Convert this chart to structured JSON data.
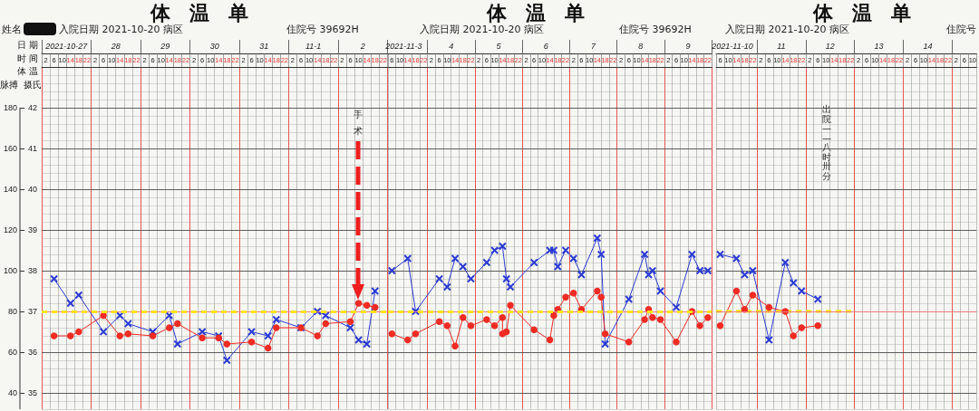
{
  "chart_data": [
    {
      "type": "line",
      "title": "体温单",
      "subtitle": "入院日期 2021-10-20 病区",
      "xlabel": "时 间",
      "x2label": "日 期",
      "ylabel": "脉搏",
      "y2label": "摄氏",
      "annotations": [
        "姓名",
        "住院号 39692H",
        "体 温",
        "手术"
      ],
      "xlim": [
        "2021-10-27T00:00",
        "2021-11-03T00:00"
      ],
      "xticks": [
        {
          "value": "2021-10-27T00:00",
          "label": null
        },
        {
          "value": "2021-10-27T02:00",
          "label": "2"
        },
        {
          "value": "2021-10-27T04:00",
          "label": null
        },
        {
          "value": "2021-10-27T06:00",
          "label": "6"
        },
        {
          "value": "2021-10-27T08:00",
          "label": null
        },
        {
          "value": "2021-10-27T10:00",
          "label": "10"
        },
        {
          "value": "2021-10-27T12:00",
          "label": null
        },
        {
          "value": "2021-10-27T14:00",
          "label": "14"
        },
        {
          "value": "2021-10-27T16:00",
          "label": null
        },
        {
          "value": "2021-10-27T18:00",
          "label": "18"
        },
        {
          "value": "2021-10-27T20:00",
          "label": null
        },
        {
          "value": "2021-10-27T22:00",
          "label": "22"
        },
        {
          "value": "2021-10-28T00:00",
          "label": null
        },
        {
          "value": "2021-10-28T02:00",
          "label": "2"
        },
        {
          "value": "2021-10-28T04:00",
          "label": null
        },
        {
          "value": "2021-10-28T06:00",
          "label": "6"
        },
        {
          "value": "2021-10-28T08:00",
          "label": null
        },
        {
          "value": "2021-10-28T10:00",
          "label": "10"
        },
        {
          "value": "2021-10-28T12:00",
          "label": null
        },
        {
          "value": "2021-10-28T14:00",
          "label": "14"
        },
        {
          "value": "2021-10-28T16:00",
          "label": null
        },
        {
          "value": "2021-10-28T18:00",
          "label": "18"
        },
        {
          "value": "2021-10-28T20:00",
          "label": null
        },
        {
          "value": "2021-10-28T22:00",
          "label": "22"
        },
        {
          "value": "2021-10-29T00:00",
          "label": null
        },
        {
          "value": "2021-10-29T02:00",
          "label": "2"
        },
        {
          "value": "2021-10-29T04:00",
          "label": null
        },
        {
          "value": "2021-10-29T06:00",
          "label": "6"
        },
        {
          "value": "2021-10-29T08:00",
          "label": null
        },
        {
          "value": "2021-10-29T10:00",
          "label": "10"
        },
        {
          "value": "2021-10-29T12:00",
          "label": null
        },
        {
          "value": "2021-10-29T14:00",
          "label": "14"
        },
        {
          "value": "2021-10-29T16:00",
          "label": null
        },
        {
          "value": "2021-10-29T18:00",
          "label": "18"
        },
        {
          "value": "2021-10-29T20:00",
          "label": null
        },
        {
          "value": "2021-10-29T22:00",
          "label": "22"
        },
        {
          "value": "2021-10-30T00:00",
          "label": null
        },
        {
          "value": "2021-10-30T02:00",
          "label": "2"
        },
        {
          "value": "2021-10-30T04:00",
          "label": null
        },
        {
          "value": "2021-10-30T06:00",
          "label": "6"
        },
        {
          "value": "2021-10-30T08:00",
          "label": null
        },
        {
          "value": "2021-10-30T10:00",
          "label": "10"
        },
        {
          "value": "2021-10-30T12:00",
          "label": null
        },
        {
          "value": "2021-10-30T14:00",
          "label": "14"
        },
        {
          "value": "2021-10-30T16:00",
          "label": null
        },
        {
          "value": "2021-10-30T18:00",
          "label": "18"
        },
        {
          "value": "2021-10-30T20:00",
          "label": null
        },
        {
          "value": "2021-10-30T22:00",
          "label": "22"
        },
        {
          "value": "2021-10-31T00:00",
          "label": null
        },
        {
          "value": "2021-10-31T02:00",
          "label": "2"
        },
        {
          "value": "2021-10-31T04:00",
          "label": null
        },
        {
          "value": "2021-10-31T06:00",
          "label": "6"
        },
        {
          "value": "2021-10-31T08:00",
          "label": null
        },
        {
          "value": "2021-10-31T10:00",
          "label": "10"
        },
        {
          "value": "2021-10-31T12:00",
          "label": null
        },
        {
          "value": "2021-10-31T14:00",
          "label": "14"
        },
        {
          "value": "2021-10-31T16:00",
          "label": null
        },
        {
          "value": "2021-10-31T18:00",
          "label": "18"
        },
        {
          "value": "2021-10-31T20:00",
          "label": null
        },
        {
          "value": "2021-10-31T22:00",
          "label": "22"
        },
        {
          "value": "2021-11-01T00:00",
          "label": null
        },
        {
          "value": "2021-11-01T02:00",
          "label": "2"
        },
        {
          "value": "2021-11-01T04:00",
          "label": null
        },
        {
          "value": "2021-11-01T06:00",
          "label": "6"
        },
        {
          "value": "2021-11-01T08:00",
          "label": null
        },
        {
          "value": "2021-11-01T10:00",
          "label": "10"
        },
        {
          "value": "2021-11-01T12:00",
          "label": null
        },
        {
          "value": "2021-11-01T14:00",
          "label": "14"
        },
        {
          "value": "2021-11-01T16:00",
          "label": null
        },
        {
          "value": "2021-11-01T18:00",
          "label": "18"
        },
        {
          "value": "2021-11-01T20:00",
          "label": null
        },
        {
          "value": "2021-11-01T22:00",
          "label": "22"
        },
        {
          "value": "2021-11-02T00:00",
          "label": null
        },
        {
          "value": "2021-11-02T02:00",
          "label": "2"
        },
        {
          "value": "2021-11-02T04:00",
          "label": null
        },
        {
          "value": "2021-11-02T06:00",
          "label": "6"
        },
        {
          "value": "2021-11-02T08:00",
          "label": null
        },
        {
          "value": "2021-11-02T10:00",
          "label": "10"
        },
        {
          "value": "2021-11-02T12:00",
          "label": null
        },
        {
          "value": "2021-11-02T14:00",
          "label": "14"
        },
        {
          "value": "2021-11-02T16:00",
          "label": null
        },
        {
          "value": "2021-11-02T18:00",
          "label": "18"
        },
        {
          "value": "2021-11-02T20:00",
          "label": null
        },
        {
          "value": "2021-11-02T22:00",
          "label": "22"
        },
        {
          "value": "2021-11-03T00:00",
          "label": null
        }
      ],
      "x2lim": [
        "2021-10-27T00:00",
        "2021-11-03T00:00"
      ],
      "x2ticks": [
        {
          "value": "2021-10-27T00:00",
          "label": null
        },
        {
          "value": "2021-10-27T12:00",
          "label": "2021-10-27"
        },
        {
          "value": "2021-10-28T00:00",
          "label": null
        },
        {
          "value": "2021-10-28T12:00",
          "label": "28"
        },
        {
          "value": "2021-10-29T00:00",
          "label": null
        },
        {
          "value": "2021-10-29T12:00",
          "label": "29"
        },
        {
          "value": "2021-10-30T00:00",
          "label": null
        },
        {
          "value": "2021-10-30T12:00",
          "label": "30"
        },
        {
          "value": "2021-10-31T00:00",
          "label": null
        },
        {
          "value": "2021-10-31T12:00",
          "label": "31"
        },
        {
          "value": "2021-11-01T00:00",
          "label": null
        },
        {
          "value": "2021-11-01T12:00",
          "label": "11-1"
        },
        {
          "value": "2021-11-02T00:00",
          "label": null
        },
        {
          "value": "2021-11-02T12:00",
          "label": "2"
        },
        {
          "value": "2021-11-03T00:00",
          "label": null
        }
      ],
      "ylim": [
        32,
        200
      ],
      "yticks": [
        40,
        60,
        80,
        100,
        120,
        140,
        160,
        180
      ],
      "y2lim": [
        34.6,
        43
      ],
      "y2ticks": [
        35,
        36,
        37,
        38,
        39,
        40,
        41,
        42
      ],
      "grid": true,
      "ref_lines": [
        {
          "axis": "y2",
          "value": 37,
          "color": "#f08080"
        },
        {
          "axis": "y2",
          "value": 37,
          "color": "#ffe600",
          "line_style": "dashed"
        }
      ],
      "series": [
        {
          "color": "#2b3bd4",
          "marker": "cross",
          "axis": "y2",
          "x": [
            "2021-10-27T06:00",
            "2021-10-27T14:00",
            "2021-10-27T18:00",
            "2021-10-28T06:00",
            "2021-10-28T14:00",
            "2021-10-28T18:00",
            "2021-10-29T06:00",
            "2021-10-29T14:00",
            "2021-10-29T18:00",
            "2021-10-30T06:00",
            "2021-10-30T14:00",
            "2021-10-30T18:00",
            "2021-10-31T06:00",
            "2021-10-31T14:00",
            "2021-10-31T18:00",
            "2021-11-01T06:00",
            "2021-11-01T14:00",
            "2021-11-01T18:00",
            "2021-11-02T06:00",
            "2021-11-02T10:00",
            "2021-11-02T14:00",
            "2021-11-02T18:00"
          ],
          "values": [
            37.8,
            37.2,
            37.4,
            36.5,
            36.9,
            36.7,
            36.5,
            36.9,
            36.2,
            36.5,
            36.4,
            35.8,
            36.5,
            36.4,
            36.8,
            36.6,
            37.0,
            36.9,
            36.6,
            36.3,
            36.2,
            37.5
          ]
        },
        {
          "color": "#ef2b23",
          "marker": "circle",
          "axis": "y",
          "x": [
            "2021-10-27T06:00",
            "2021-10-27T14:00",
            "2021-10-27T18:00",
            "2021-10-28T06:00",
            "2021-10-28T14:00",
            "2021-10-28T18:00",
            "2021-10-29T06:00",
            "2021-10-29T14:00",
            "2021-10-29T18:00",
            "2021-10-30T06:00",
            "2021-10-30T14:00",
            "2021-10-30T18:00",
            "2021-10-31T06:00",
            "2021-10-31T14:00",
            "2021-10-31T18:00",
            "2021-11-01T06:00",
            "2021-11-01T14:00",
            "2021-11-01T18:00",
            "2021-11-02T06:00",
            "2021-11-02T10:00",
            "2021-11-02T14:00",
            "2021-11-02T18:00"
          ],
          "values": [
            68,
            68,
            70,
            78,
            68,
            69,
            68,
            72,
            74,
            67,
            67,
            64,
            65,
            62,
            72,
            72,
            68,
            74,
            75,
            84,
            83,
            82
          ]
        }
      ]
    },
    {
      "type": "line",
      "title": "体温单",
      "subtitle": "入院日期 2021-10-20 病区",
      "annotations": [
        "住院号 39692H"
      ],
      "xlim": [
        "2021-11-03T04:00",
        "2021-11-10T00:00"
      ],
      "xticks": [
        {
          "value": "2021-11-03T04:00",
          "label": null
        },
        {
          "value": "2021-11-03T06:00",
          "label": "6"
        },
        {
          "value": "2021-11-03T08:00",
          "label": null
        },
        {
          "value": "2021-11-03T10:00",
          "label": "10"
        },
        {
          "value": "2021-11-03T12:00",
          "label": null
        },
        {
          "value": "2021-11-03T14:00",
          "label": "14"
        },
        {
          "value": "2021-11-03T16:00",
          "label": null
        },
        {
          "value": "2021-11-03T18:00",
          "label": "18"
        },
        {
          "value": "2021-11-03T20:00",
          "label": null
        },
        {
          "value": "2021-11-03T22:00",
          "label": "22"
        },
        {
          "value": "2021-11-04T00:00",
          "label": null
        },
        {
          "value": "2021-11-04T02:00",
          "label": "2"
        },
        {
          "value": "2021-11-04T04:00",
          "label": null
        },
        {
          "value": "2021-11-04T06:00",
          "label": "6"
        },
        {
          "value": "2021-11-04T08:00",
          "label": null
        },
        {
          "value": "2021-11-04T10:00",
          "label": "10"
        },
        {
          "value": "2021-11-04T12:00",
          "label": null
        },
        {
          "value": "2021-11-04T14:00",
          "label": "14"
        },
        {
          "value": "2021-11-04T16:00",
          "label": null
        },
        {
          "value": "2021-11-04T18:00",
          "label": "18"
        },
        {
          "value": "2021-11-04T20:00",
          "label": null
        },
        {
          "value": "2021-11-04T22:00",
          "label": "22"
        },
        {
          "value": "2021-11-05T00:00",
          "label": null
        },
        {
          "value": "2021-11-05T02:00",
          "label": "2"
        },
        {
          "value": "2021-11-05T04:00",
          "label": null
        },
        {
          "value": "2021-11-05T06:00",
          "label": "6"
        },
        {
          "value": "2021-11-05T08:00",
          "label": null
        },
        {
          "value": "2021-11-05T10:00",
          "label": "10"
        },
        {
          "value": "2021-11-05T12:00",
          "label": null
        },
        {
          "value": "2021-11-05T14:00",
          "label": "14"
        },
        {
          "value": "2021-11-05T16:00",
          "label": null
        },
        {
          "value": "2021-11-05T18:00",
          "label": "18"
        },
        {
          "value": "2021-11-05T20:00",
          "label": null
        },
        {
          "value": "2021-11-05T22:00",
          "label": "22"
        },
        {
          "value": "2021-11-06T00:00",
          "label": null
        },
        {
          "value": "2021-11-06T02:00",
          "label": "2"
        },
        {
          "value": "2021-11-06T04:00",
          "label": null
        },
        {
          "value": "2021-11-06T06:00",
          "label": "6"
        },
        {
          "value": "2021-11-06T08:00",
          "label": null
        },
        {
          "value": "2021-11-06T10:00",
          "label": "10"
        },
        {
          "value": "2021-11-06T12:00",
          "label": null
        },
        {
          "value": "2021-11-06T14:00",
          "label": "14"
        },
        {
          "value": "2021-11-06T16:00",
          "label": null
        },
        {
          "value": "2021-11-06T18:00",
          "label": "18"
        },
        {
          "value": "2021-11-06T20:00",
          "label": null
        },
        {
          "value": "2021-11-06T22:00",
          "label": "22"
        },
        {
          "value": "2021-11-07T00:00",
          "label": null
        },
        {
          "value": "2021-11-07T02:00",
          "label": "2"
        },
        {
          "value": "2021-11-07T04:00",
          "label": null
        },
        {
          "value": "2021-11-07T06:00",
          "label": "6"
        },
        {
          "value": "2021-11-07T08:00",
          "label": null
        },
        {
          "value": "2021-11-07T10:00",
          "label": "10"
        },
        {
          "value": "2021-11-07T12:00",
          "label": null
        },
        {
          "value": "2021-11-07T14:00",
          "label": "14"
        },
        {
          "value": "2021-11-07T16:00",
          "label": null
        },
        {
          "value": "2021-11-07T18:00",
          "label": "18"
        },
        {
          "value": "2021-11-07T20:00",
          "label": null
        },
        {
          "value": "2021-11-07T22:00",
          "label": "22"
        },
        {
          "value": "2021-11-08T00:00",
          "label": null
        },
        {
          "value": "2021-11-08T02:00",
          "label": "2"
        },
        {
          "value": "2021-11-08T04:00",
          "label": null
        },
        {
          "value": "2021-11-08T06:00",
          "label": "6"
        },
        {
          "value": "2021-11-08T08:00",
          "label": null
        },
        {
          "value": "2021-11-08T10:00",
          "label": "10"
        },
        {
          "value": "2021-11-08T12:00",
          "label": null
        },
        {
          "value": "2021-11-08T14:00",
          "label": "14"
        },
        {
          "value": "2021-11-08T16:00",
          "label": null
        },
        {
          "value": "2021-11-08T18:00",
          "label": "18"
        },
        {
          "value": "2021-11-08T20:00",
          "label": null
        },
        {
          "value": "2021-11-08T22:00",
          "label": "22"
        },
        {
          "value": "2021-11-09T00:00",
          "label": null
        },
        {
          "value": "2021-11-09T02:00",
          "label": "2"
        },
        {
          "value": "2021-11-09T04:00",
          "label": null
        },
        {
          "value": "2021-11-09T06:00",
          "label": "6"
        },
        {
          "value": "2021-11-09T08:00",
          "label": null
        },
        {
          "value": "2021-11-09T10:00",
          "label": "10"
        },
        {
          "value": "2021-11-09T12:00",
          "label": null
        },
        {
          "value": "2021-11-09T14:00",
          "label": "14"
        },
        {
          "value": "2021-11-09T16:00",
          "label": null
        },
        {
          "value": "2021-11-09T18:00",
          "label": "18"
        },
        {
          "value": "2021-11-09T20:00",
          "label": null
        },
        {
          "value": "2021-11-09T22:00",
          "label": "22"
        },
        {
          "value": "2021-11-10T00:00",
          "label": null
        }
      ],
      "x2lim": [
        "2021-11-03T04:00",
        "2021-11-10T00:00"
      ],
      "x2ticks": [
        {
          "value": "2021-11-03T12:00",
          "label": "2021-11-3"
        },
        {
          "value": "2021-11-04T00:00",
          "label": null
        },
        {
          "value": "2021-11-04T12:00",
          "label": "4"
        },
        {
          "value": "2021-11-05T00:00",
          "label": null
        },
        {
          "value": "2021-11-05T12:00",
          "label": "5"
        },
        {
          "value": "2021-11-06T00:00",
          "label": null
        },
        {
          "value": "2021-11-06T12:00",
          "label": "6"
        },
        {
          "value": "2021-11-07T00:00",
          "label": null
        },
        {
          "value": "2021-11-07T12:00",
          "label": "7"
        },
        {
          "value": "2021-11-08T00:00",
          "label": null
        },
        {
          "value": "2021-11-08T12:00",
          "label": "8"
        },
        {
          "value": "2021-11-09T00:00",
          "label": null
        },
        {
          "value": "2021-11-09T12:00",
          "label": "9"
        },
        {
          "value": "2021-11-10T00:00",
          "label": null
        }
      ],
      "ylim": [
        32,
        200
      ],
      "yticks": [
        40,
        60,
        80,
        100,
        120,
        140,
        160,
        180
      ],
      "y2lim": [
        34.6,
        43
      ],
      "y2ticks": [
        35,
        36,
        37,
        38,
        39,
        40,
        41,
        42
      ],
      "tick_labels": "x",
      "grid": true,
      "ref_lines": [
        {
          "axis": "y2",
          "value": 37,
          "color": "#f08080"
        },
        {
          "axis": "y2",
          "value": 37,
          "color": "#ffe600",
          "line_style": "dashed"
        }
      ],
      "series": [
        {
          "color": "#2b3bd4",
          "marker": "cross",
          "axis": "y2",
          "x": [
            "2021-11-03T06:00",
            "2021-11-03T14:00",
            "2021-11-03T18:00",
            "2021-11-04T06:00",
            "2021-11-04T10:00",
            "2021-11-04T14:00",
            "2021-11-04T18:00",
            "2021-11-04T22:00",
            "2021-11-05T06:00",
            "2021-11-05T10:00",
            "2021-11-05T14:00",
            "2021-11-05T16:00",
            "2021-11-05T18:00",
            "2021-11-06T06:00",
            "2021-11-06T14:00",
            "2021-11-06T16:00",
            "2021-11-06T18:00",
            "2021-11-06T22:00",
            "2021-11-07T02:00",
            "2021-11-07T06:00",
            "2021-11-07T14:00",
            "2021-11-07T16:00",
            "2021-11-07T18:00",
            "2021-11-08T06:00",
            "2021-11-08T14:00",
            "2021-11-08T16:00",
            "2021-11-08T18:00",
            "2021-11-08T22:00",
            "2021-11-09T06:00",
            "2021-11-09T14:00",
            "2021-11-09T18:00",
            "2021-11-09T22:00"
          ],
          "values": [
            38.0,
            38.3,
            37.0,
            37.8,
            37.6,
            38.3,
            38.1,
            37.8,
            38.2,
            38.5,
            38.6,
            37.8,
            37.6,
            38.2,
            38.5,
            38.5,
            38.1,
            38.5,
            38.3,
            37.9,
            38.8,
            38.4,
            36.2,
            37.3,
            38.4,
            37.9,
            38.0,
            37.5,
            37.1,
            38.4,
            38.0,
            38.0
          ]
        },
        {
          "color": "#ef2b23",
          "marker": "circle",
          "axis": "y",
          "x": [
            "2021-11-03T06:00",
            "2021-11-03T14:00",
            "2021-11-03T18:00",
            "2021-11-04T06:00",
            "2021-11-04T10:00",
            "2021-11-04T14:00",
            "2021-11-04T18:00",
            "2021-11-04T22:00",
            "2021-11-05T06:00",
            "2021-11-05T10:00",
            "2021-11-05T14:00",
            "2021-11-05T14:00",
            "2021-11-05T16:00",
            "2021-11-05T18:00",
            "2021-11-06T06:00",
            "2021-11-06T14:00",
            "2021-11-06T16:00",
            "2021-11-06T18:00",
            "2021-11-06T22:00",
            "2021-11-07T02:00",
            "2021-11-07T06:00",
            "2021-11-07T14:00",
            "2021-11-07T16:00",
            "2021-11-07T18:00",
            "2021-11-08T06:00",
            "2021-11-08T14:00",
            "2021-11-08T16:00",
            "2021-11-08T18:00",
            "2021-11-08T22:00",
            "2021-11-09T06:00",
            "2021-11-09T14:00",
            "2021-11-09T18:00",
            "2021-11-09T22:00"
          ],
          "values": [
            69,
            66,
            69,
            75,
            73,
            63,
            77,
            73,
            76,
            73,
            77,
            69,
            70,
            83,
            71,
            66,
            78,
            81,
            87,
            89,
            81,
            90,
            87,
            69,
            65,
            76,
            81,
            77,
            76,
            65,
            80,
            73,
            77
          ]
        }
      ]
    },
    {
      "type": "line",
      "title": "体温单",
      "subtitle": "入院日期 2021-10-20 病区",
      "annotations": [
        "住院号",
        "出院——八时卅分"
      ],
      "xlim": [
        "2021-11-10T04:00",
        "2021-11-15T12:00"
      ],
      "xticks": [
        {
          "value": "2021-11-10T04:00",
          "label": null
        },
        {
          "value": "2021-11-10T06:00",
          "label": "6"
        },
        {
          "value": "2021-11-10T08:00",
          "label": null
        },
        {
          "value": "2021-11-10T10:00",
          "label": "10"
        },
        {
          "value": "2021-11-10T12:00",
          "label": null
        },
        {
          "value": "2021-11-10T14:00",
          "label": "14"
        },
        {
          "value": "2021-11-10T16:00",
          "label": null
        },
        {
          "value": "2021-11-10T18:00",
          "label": "18"
        },
        {
          "value": "2021-11-10T20:00",
          "label": null
        },
        {
          "value": "2021-11-10T22:00",
          "label": "22"
        },
        {
          "value": "2021-11-11T00:00",
          "label": null
        },
        {
          "value": "2021-11-11T02:00",
          "label": "2"
        },
        {
          "value": "2021-11-11T04:00",
          "label": null
        },
        {
          "value": "2021-11-11T06:00",
          "label": "6"
        },
        {
          "value": "2021-11-11T08:00",
          "label": null
        },
        {
          "value": "2021-11-11T10:00",
          "label": "10"
        },
        {
          "value": "2021-11-11T12:00",
          "label": null
        },
        {
          "value": "2021-11-11T14:00",
          "label": "14"
        },
        {
          "value": "2021-11-11T16:00",
          "label": null
        },
        {
          "value": "2021-11-11T18:00",
          "label": "18"
        },
        {
          "value": "2021-11-11T20:00",
          "label": null
        },
        {
          "value": "2021-11-11T22:00",
          "label": "22"
        },
        {
          "value": "2021-11-12T00:00",
          "label": null
        },
        {
          "value": "2021-11-12T02:00",
          "label": "2"
        },
        {
          "value": "2021-11-12T04:00",
          "label": null
        },
        {
          "value": "2021-11-12T06:00",
          "label": "6"
        },
        {
          "value": "2021-11-12T08:00",
          "label": null
        },
        {
          "value": "2021-11-12T10:00",
          "label": "10"
        },
        {
          "value": "2021-11-12T12:00",
          "label": null
        },
        {
          "value": "2021-11-12T14:00",
          "label": "14"
        },
        {
          "value": "2021-11-12T16:00",
          "label": null
        },
        {
          "value": "2021-11-12T18:00",
          "label": "18"
        },
        {
          "value": "2021-11-12T20:00",
          "label": null
        },
        {
          "value": "2021-11-12T22:00",
          "label": "22"
        },
        {
          "value": "2021-11-13T00:00",
          "label": null
        },
        {
          "value": "2021-11-13T02:00",
          "label": "2"
        },
        {
          "value": "2021-11-13T04:00",
          "label": null
        },
        {
          "value": "2021-11-13T06:00",
          "label": "6"
        },
        {
          "value": "2021-11-13T08:00",
          "label": null
        },
        {
          "value": "2021-11-13T10:00",
          "label": "10"
        },
        {
          "value": "2021-11-13T12:00",
          "label": null
        },
        {
          "value": "2021-11-13T14:00",
          "label": "14"
        },
        {
          "value": "2021-11-13T16:00",
          "label": null
        },
        {
          "value": "2021-11-13T18:00",
          "label": "18"
        },
        {
          "value": "2021-11-13T20:00",
          "label": null
        },
        {
          "value": "2021-11-13T22:00",
          "label": "22"
        },
        {
          "value": "2021-11-14T00:00",
          "label": null
        },
        {
          "value": "2021-11-14T02:00",
          "label": "2"
        },
        {
          "value": "2021-11-14T04:00",
          "label": null
        },
        {
          "value": "2021-11-14T06:00",
          "label": "6"
        },
        {
          "value": "2021-11-14T08:00",
          "label": null
        },
        {
          "value": "2021-11-14T10:00",
          "label": "10"
        },
        {
          "value": "2021-11-14T12:00",
          "label": null
        },
        {
          "value": "2021-11-14T14:00",
          "label": "14"
        },
        {
          "value": "2021-11-14T16:00",
          "label": null
        },
        {
          "value": "2021-11-14T18:00",
          "label": "18"
        },
        {
          "value": "2021-11-14T20:00",
          "label": null
        },
        {
          "value": "2021-11-14T22:00",
          "label": "22"
        },
        {
          "value": "2021-11-15T00:00",
          "label": null
        },
        {
          "value": "2021-11-15T02:00",
          "label": "2"
        },
        {
          "value": "2021-11-15T04:00",
          "label": null
        },
        {
          "value": "2021-11-15T06:00",
          "label": "6"
        },
        {
          "value": "2021-11-15T08:00",
          "label": null
        },
        {
          "value": "2021-11-15T10:00",
          "label": "10"
        },
        {
          "value": "2021-11-15T12:00",
          "label": null
        }
      ],
      "x2lim": [
        "2021-11-10T04:00",
        "2021-11-15T12:00"
      ],
      "x2ticks": [
        {
          "value": "2021-11-10T12:00",
          "label": "2021-11-10"
        },
        {
          "value": "2021-11-11T00:00",
          "label": null
        },
        {
          "value": "2021-11-11T12:00",
          "label": "11"
        },
        {
          "value": "2021-11-12T00:00",
          "label": null
        },
        {
          "value": "2021-11-12T12:00",
          "label": "12"
        },
        {
          "value": "2021-11-13T00:00",
          "label": null
        },
        {
          "value": "2021-11-13T12:00",
          "label": "13"
        },
        {
          "value": "2021-11-14T00:00",
          "label": null
        },
        {
          "value": "2021-11-14T12:00",
          "label": "14"
        },
        {
          "value": "2021-11-15T00:00",
          "label": null
        }
      ],
      "ylim": [
        32,
        200
      ],
      "yticks": [
        40,
        60,
        80,
        100,
        120,
        140,
        160,
        180
      ],
      "y2lim": [
        34.6,
        43
      ],
      "y2ticks": [
        35,
        36,
        37,
        38,
        39,
        40,
        41,
        42
      ],
      "tick_labels": "x",
      "grid": true,
      "ref_lines": [
        {
          "axis": "y2",
          "value": 37,
          "color": "#f08080"
        }
      ],
      "series": [
        {
          "color": "#2b3bd4",
          "marker": "cross",
          "axis": "y2",
          "x": [
            "2021-11-10T06:00",
            "2021-11-10T14:00",
            "2021-11-10T18:00",
            "2021-11-10T22:00",
            "2021-11-11T06:00",
            "2021-11-11T14:00",
            "2021-11-11T18:00",
            "2021-11-11T22:00",
            "2021-11-12T06:00"
          ],
          "values": [
            38.4,
            38.3,
            37.9,
            38.0,
            36.3,
            38.2,
            37.7,
            37.5,
            37.3
          ]
        },
        {
          "color": "#ef2b23",
          "marker": "circle",
          "axis": "y",
          "x": [
            "2021-11-10T06:00",
            "2021-11-10T14:00",
            "2021-11-10T18:00",
            "2021-11-10T22:00",
            "2021-11-11T06:00",
            "2021-11-11T14:00",
            "2021-11-11T18:00",
            "2021-11-11T22:00",
            "2021-11-12T06:00"
          ],
          "values": [
            73,
            90,
            81,
            88,
            82,
            80,
            68,
            72,
            73
          ]
        },
        {
          "color": "#ffe600",
          "marker": "none",
          "line_style": "dashed",
          "axis": "y2",
          "x": [
            "2021-11-10T04:00",
            "2021-11-13T00:00"
          ],
          "values": [
            37,
            37
          ]
        }
      ]
    }
  ]
}
